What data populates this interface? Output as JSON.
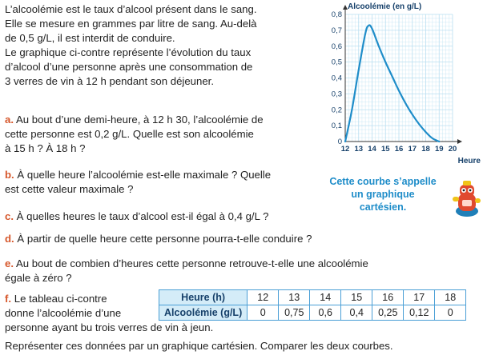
{
  "intro": {
    "l1": "L’alcoolémie est le taux d’alcool présent dans le sang.",
    "l2": "Elle se mesure en grammes par litre de sang. Au-delà",
    "l3": "de 0,5 g/L, il est interdit de conduire.",
    "l4": "Le graphique ci-contre représente l’évolution du taux",
    "l5": "d’alcool d’une personne après une consommation de",
    "l6": "3 verres de vin à 12 h pendant son déjeuner."
  },
  "questions": {
    "a_label": "a.",
    "a_l1": "Au bout d’une demi-heure, à 12 h 30, l’alcoolémie de",
    "a_l2": "cette personne est 0,2 g/L. Quelle est son alcoolémie",
    "a_l3": "à 15 h ? À 18 h ?",
    "b_label": "b.",
    "b_l1": "À quelle heure l’alcoolémie est-elle maximale ? Quelle",
    "b_l2": "est cette valeur maximale ?",
    "c_label": "c.",
    "c_text": "À quelles heures le taux d’alcool est-il égal à 0,4 g/L ?",
    "d_label": "d.",
    "d_text": "À partir de quelle heure cette personne pourra-t-elle conduire ?",
    "e_label": "e.",
    "e_l1": "Au bout de combien d’heures cette personne retrouve-t-elle une alcoolémie",
    "e_l2": "égale à zéro ?",
    "f_label": "f.",
    "f_l1": "Le tableau ci-contre",
    "f_l2": "donne l’alcoolémie d’une",
    "f_l3": "personne ayant bu trois verres de vin à jeun.",
    "f_l4": "Représenter ces données par un graphique cartésien. Comparer les deux courbes."
  },
  "callout": {
    "l1": "Cette courbe s’appelle",
    "l2": "un graphique",
    "l3": "cartésien."
  },
  "table": {
    "row1_header": "Heure (h)",
    "row2_header": "Alcoolémie (g/L)",
    "hours": [
      "12",
      "13",
      "14",
      "15",
      "16",
      "17",
      "18"
    ],
    "levels": [
      "0",
      "0,75",
      "0,6",
      "0,4",
      "0,25",
      "0,12",
      "0"
    ]
  },
  "chart_data": {
    "type": "line",
    "title": "Alcoolémie (en g/L)",
    "xlabel": "Heure",
    "ylabel": "",
    "xlim": [
      12,
      20
    ],
    "ylim": [
      0,
      0.8
    ],
    "x_ticks": [
      "12",
      "13",
      "14",
      "15",
      "16",
      "17",
      "18",
      "19",
      "20"
    ],
    "y_ticks": [
      "0",
      "0,1",
      "0,2",
      "0,3",
      "0,4",
      "0,5",
      "0,6",
      "0,7",
      "0,8"
    ],
    "grid": true,
    "series": [
      {
        "x": [
          12,
          12.5,
          13,
          13.5,
          13.75,
          14,
          14.5,
          15,
          15.5,
          16,
          16.5,
          17,
          17.5,
          18,
          18.5,
          19
        ],
        "values": [
          0,
          0.2,
          0.45,
          0.68,
          0.73,
          0.71,
          0.6,
          0.5,
          0.41,
          0.32,
          0.24,
          0.17,
          0.11,
          0.06,
          0.02,
          0
        ]
      }
    ],
    "colors": {
      "line": "#1f8dc9",
      "grid": "#b9dff1",
      "axis": "#333333"
    }
  }
}
